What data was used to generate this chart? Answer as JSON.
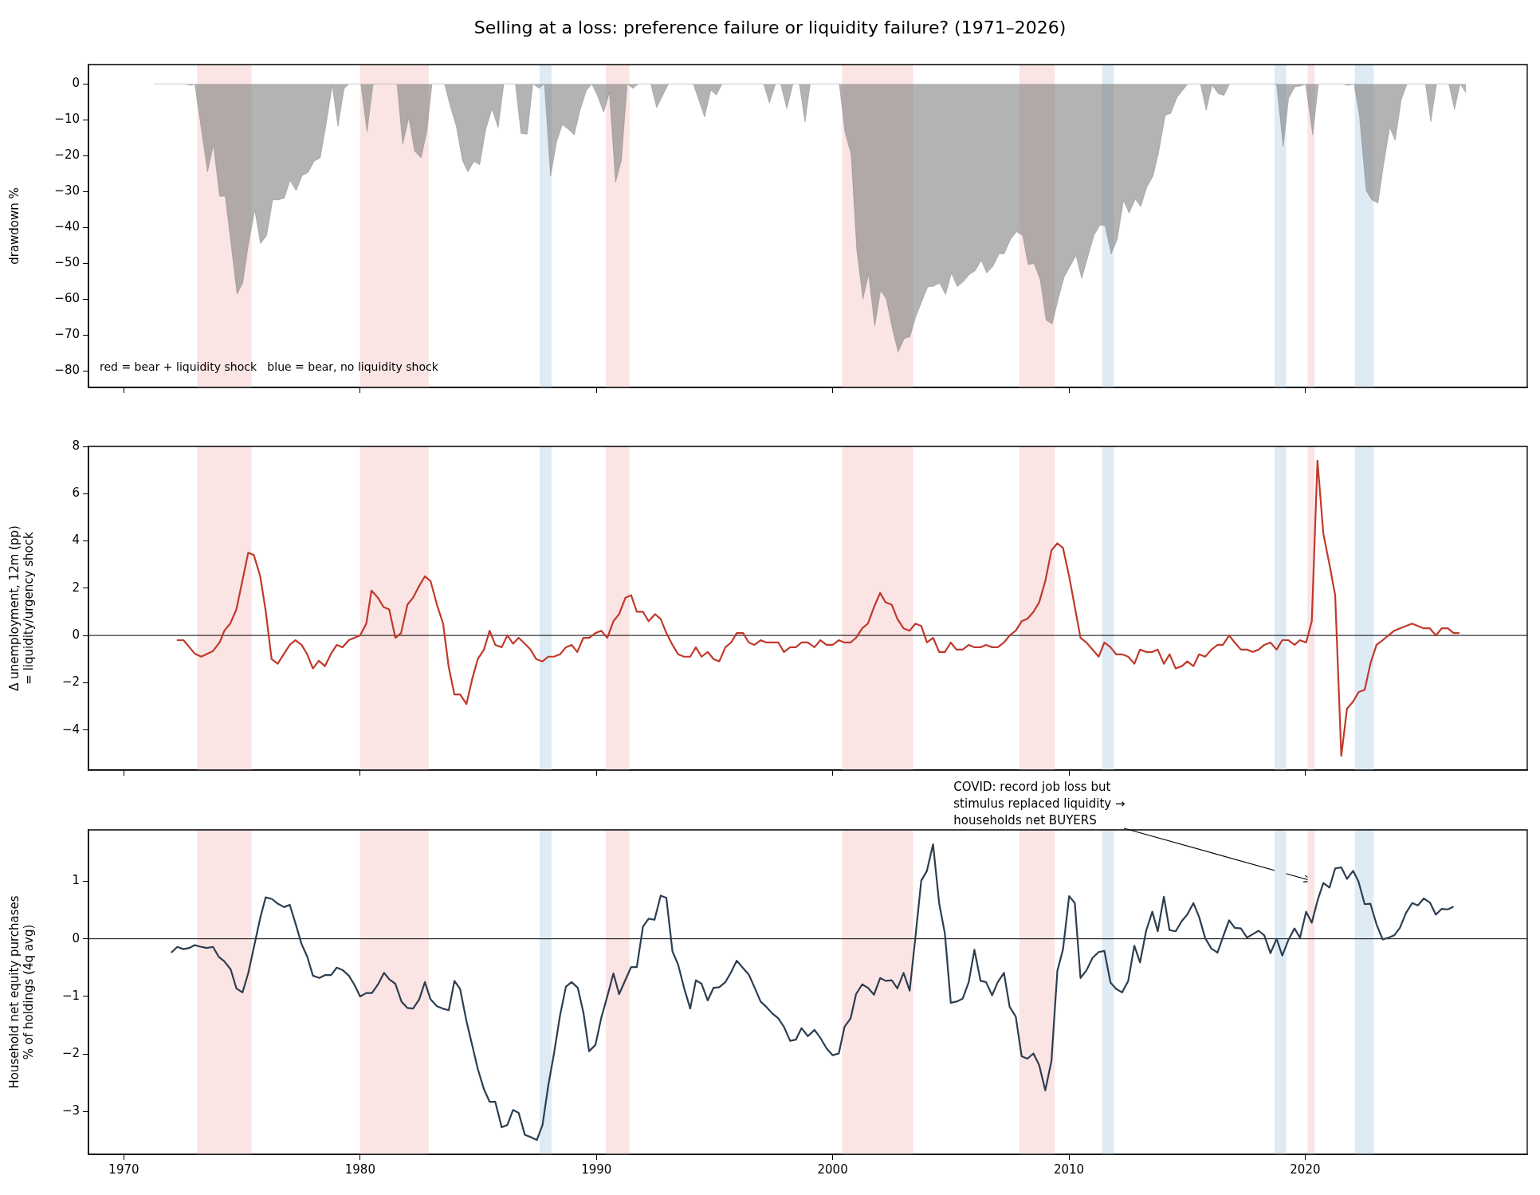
{
  "chart_data": [
    {
      "type": "area",
      "title": "Selling at a loss: preference failure or liquidity failure? (1971–2026)",
      "ylabel": "drawdown %",
      "color": "#808080",
      "tick_labels": "y",
      "xlim": [
        1968.5,
        2029.4
      ],
      "xticks": [
        1970,
        1980,
        1990,
        2000,
        2010,
        2020
      ],
      "ylim": [
        -84.6,
        5.4
      ],
      "yticks": [
        -80,
        -70,
        -60,
        -50,
        -40,
        -30,
        -20,
        -10,
        0
      ],
      "annotations": [
        "red = bear + liquidity shock   blue = bear, no liquidity shock"
      ],
      "bands": [
        {
          "axis": "x",
          "from": 1973.1,
          "to": 1975.4,
          "color": "#fbe4e4"
        },
        {
          "axis": "x",
          "from": 1980.0,
          "to": 1982.9,
          "color": "#fbe4e4"
        },
        {
          "axis": "x",
          "from": 1987.6,
          "to": 1988.1,
          "color": "#deebf5"
        },
        {
          "axis": "x",
          "from": 1990.4,
          "to": 1991.4,
          "color": "#fbe4e4"
        },
        {
          "axis": "x",
          "from": 2000.4,
          "to": 2003.4,
          "color": "#fbe4e4"
        },
        {
          "axis": "x",
          "from": 2007.9,
          "to": 2009.4,
          "color": "#fbe4e4"
        },
        {
          "axis": "x",
          "from": 2011.4,
          "to": 2011.9,
          "color": "#deebf5"
        },
        {
          "axis": "x",
          "from": 2018.7,
          "to": 2019.2,
          "color": "#deebf5"
        },
        {
          "axis": "x",
          "from": 2020.1,
          "to": 2020.4,
          "color": "#fbe4e4"
        },
        {
          "axis": "x",
          "from": 2022.1,
          "to": 2022.9,
          "color": "#deebf5"
        }
      ],
      "x": [
        1971.27,
        1972.56,
        1972.86,
        1973.0,
        1973.54,
        1973.79,
        1974.05,
        1974.29,
        1974.79,
        1975.03,
        1975.28,
        1975.54,
        1975.78,
        1976.04,
        1976.3,
        1976.54,
        1976.79,
        1977.03,
        1977.29,
        1977.55,
        1977.79,
        1978.05,
        1978.31,
        1978.56,
        1978.82,
        1979.06,
        1979.32,
        1979.52,
        1980.03,
        1980.29,
        1980.55,
        1981.56,
        1981.8,
        1982.06,
        1982.3,
        1982.58,
        1982.82,
        1983.04,
        1983.57,
        1983.83,
        1984.07,
        1984.33,
        1984.56,
        1984.82,
        1985.06,
        1985.32,
        1985.58,
        1985.84,
        1986.08,
        1986.57,
        1986.81,
        1987.07,
        1987.31,
        1987.57,
        1987.8,
        1988.06,
        1988.32,
        1988.56,
        1988.82,
        1989.06,
        1989.31,
        1989.57,
        1989.81,
        1990.05,
        1990.31,
        1990.55,
        1990.81,
        1991.06,
        1991.3,
        1991.54,
        1991.79,
        1992.3,
        1992.55,
        1993.05,
        1994.1,
        1994.58,
        1994.84,
        1995.08,
        1995.32,
        1997.08,
        1997.32,
        1997.58,
        1997.8,
        1998.06,
        1998.32,
        1998.59,
        1998.83,
        1999.05,
        2000.28,
        2000.52,
        2000.78,
        2001.02,
        2001.28,
        2001.52,
        2001.78,
        2002.03,
        2002.27,
        2002.53,
        2002.77,
        2003.03,
        2003.27,
        2003.52,
        2004.02,
        2004.28,
        2004.52,
        2004.78,
        2005.03,
        2005.27,
        2005.53,
        2005.79,
        2006.03,
        2006.29,
        2006.52,
        2006.78,
        2007.04,
        2007.26,
        2007.54,
        2007.78,
        2008.04,
        2008.27,
        2008.53,
        2008.79,
        2009.03,
        2009.29,
        2009.55,
        2009.8,
        2010.3,
        2010.54,
        2011.06,
        2011.31,
        2011.53,
        2011.79,
        2012.05,
        2012.31,
        2012.55,
        2012.81,
        2013.04,
        2013.3,
        2013.56,
        2013.8,
        2014.08,
        2014.31,
        2014.57,
        2015.03,
        2015.57,
        2015.81,
        2016.06,
        2016.32,
        2016.56,
        2016.8,
        2018.79,
        2019.07,
        2019.3,
        2019.56,
        2019.8,
        2020.02,
        2020.32,
        2020.56,
        2021.59,
        2021.83,
        2022.07,
        2022.3,
        2022.58,
        2022.82,
        2023.08,
        2023.32,
        2023.58,
        2023.81,
        2024.07,
        2024.31,
        2025.09,
        2025.32,
        2025.56,
        2026.08,
        2026.32,
        2026.56,
        2026.81
      ],
      "values": [
        0,
        0,
        -0.4,
        0,
        -24.5,
        -17,
        -31.3,
        -31.3,
        -58.6,
        -55.5,
        -44.3,
        -35.2,
        -44.5,
        -42.3,
        -32.3,
        -32.3,
        -31.8,
        -26.9,
        -29.7,
        -25.5,
        -24.7,
        -21.6,
        -20.6,
        -11.2,
        -0.4,
        -11.8,
        -1.4,
        0,
        0,
        -13.4,
        0,
        0,
        -16.8,
        -9.4,
        -18.7,
        -20.6,
        -13.4,
        0,
        0,
        -6.6,
        -11.8,
        -21.4,
        -24.5,
        -21.6,
        -22.5,
        -12.6,
        -7,
        -12.2,
        0,
        0,
        -13.8,
        -14,
        0,
        -1.2,
        0,
        -25.7,
        -16,
        -11.3,
        -12.7,
        -14.2,
        -7.3,
        -1.9,
        0,
        -3.4,
        -7.9,
        -2.3,
        -27.4,
        -21.2,
        0,
        -1.2,
        0,
        0,
        -6.6,
        0,
        0,
        -9.2,
        -1.7,
        -3.1,
        0,
        0,
        -5.3,
        0,
        0,
        -6.9,
        0,
        0,
        -10.6,
        0,
        0,
        -13.4,
        -19.6,
        -46.2,
        -60,
        -53,
        -67.5,
        -57.5,
        -60,
        -68.3,
        -74.7,
        -71,
        -70.5,
        -64.8,
        -56.6,
        -56.4,
        -55.5,
        -58.7,
        -52.7,
        -56.5,
        -55.1,
        -53.1,
        -52.1,
        -49.2,
        -52.7,
        -50.9,
        -47.4,
        -47.3,
        -43.2,
        -41.2,
        -42.2,
        -50.3,
        -50.1,
        -54.7,
        -65.8,
        -66.9,
        -59.9,
        -53.8,
        -47.8,
        -54.2,
        -42.2,
        -39.4,
        -39.5,
        -47.4,
        -43.2,
        -32.5,
        -36,
        -32.1,
        -34.2,
        -28.7,
        -25.7,
        -19,
        -8.7,
        -8.2,
        -3.8,
        0,
        0,
        -7.4,
        -0.3,
        -2.7,
        -3.2,
        0,
        0,
        -17.5,
        -4,
        -0.8,
        -0.6,
        0,
        -14.2,
        0,
        0,
        -0.4,
        0,
        -9,
        -29.7,
        -32.3,
        -33.2,
        -22.5,
        -12.1,
        -15.7,
        -4.3,
        0,
        0,
        -10.5,
        0,
        0,
        -7.1,
        0,
        -2.5
      ]
    },
    {
      "type": "line",
      "ylabel": "Δ unemployment, 12m (pp)\n= liquidity/urgency shock",
      "color": "#c0392b",
      "tick_labels": "y",
      "xlim": [
        1968.5,
        2029.4
      ],
      "xticks": [
        1970,
        1980,
        1990,
        2000,
        2010,
        2020
      ],
      "ylim": [
        -5.7,
        8
      ],
      "yticks": [
        -4,
        -2,
        0,
        2,
        4,
        6,
        8
      ],
      "ref_lines": [
        {
          "axis": "y",
          "value": 0,
          "color": "#000000"
        }
      ],
      "bands": [
        {
          "axis": "x",
          "from": 1973.1,
          "to": 1975.4,
          "color": "#fbe4e4"
        },
        {
          "axis": "x",
          "from": 1980.0,
          "to": 1982.9,
          "color": "#fbe4e4"
        },
        {
          "axis": "x",
          "from": 1987.6,
          "to": 1988.1,
          "color": "#deebf5"
        },
        {
          "axis": "x",
          "from": 1990.4,
          "to": 1991.4,
          "color": "#fbe4e4"
        },
        {
          "axis": "x",
          "from": 2000.4,
          "to": 2003.4,
          "color": "#fbe4e4"
        },
        {
          "axis": "x",
          "from": 2007.9,
          "to": 2009.4,
          "color": "#fbe4e4"
        },
        {
          "axis": "x",
          "from": 2011.4,
          "to": 2011.9,
          "color": "#deebf5"
        },
        {
          "axis": "x",
          "from": 2018.7,
          "to": 2019.2,
          "color": "#deebf5"
        },
        {
          "axis": "x",
          "from": 2020.1,
          "to": 2020.4,
          "color": "#fbe4e4"
        },
        {
          "axis": "x",
          "from": 2022.1,
          "to": 2022.9,
          "color": "#deebf5"
        }
      ],
      "x": [
        1972.24,
        1972.52,
        1973.0,
        1973.27,
        1973.77,
        1974.06,
        1974.25,
        1974.5,
        1974.76,
        1975.0,
        1975.26,
        1975.5,
        1975.77,
        1976.0,
        1976.25,
        1976.51,
        1976.78,
        1977.02,
        1977.26,
        1977.52,
        1977.76,
        1978.0,
        1978.25,
        1978.51,
        1978.77,
        1979.01,
        1979.25,
        1979.52,
        1980.0,
        1980.26,
        1980.48,
        1980.75,
        1980.99,
        1981.23,
        1981.49,
        1981.73,
        1982.0,
        1982.24,
        1982.5,
        1982.74,
        1982.98,
        1983.25,
        1983.51,
        1983.75,
        1983.99,
        1984.23,
        1984.5,
        1984.74,
        1984.98,
        1985.24,
        1985.48,
        1985.72,
        1985.99,
        1986.23,
        1986.47,
        1986.71,
        1986.97,
        1987.21,
        1987.45,
        1987.72,
        1987.96,
        1988.2,
        1988.46,
        1988.71,
        1988.95,
        1989.19,
        1989.45,
        1989.69,
        1989.96,
        1990.2,
        1990.46,
        1990.72,
        1990.96,
        1991.23,
        1991.47,
        1991.71,
        1991.97,
        1992.21,
        1992.48,
        1992.72,
        1992.96,
        1993.22,
        1993.46,
        1993.71,
        1993.97,
        1994.21,
        1994.45,
        1994.71,
        1994.96,
        1995.2,
        1995.46,
        1995.7,
        1995.94,
        1996.21,
        1996.45,
        1996.69,
        1996.95,
        1997.19,
        1997.7,
        1997.94,
        1998.2,
        1998.44,
        1998.68,
        1998.95,
        1999.23,
        1999.48,
        1999.74,
        2000.0,
        2000.26,
        2000.5,
        2000.76,
        2000.99,
        2001.25,
        2001.49,
        2001.75,
        2002.01,
        2002.24,
        2002.5,
        2002.74,
        2003.0,
        2003.26,
        2003.5,
        2003.75,
        2003.99,
        2004.25,
        2004.51,
        2004.75,
        2005.0,
        2005.24,
        2005.5,
        2005.76,
        2006.0,
        2006.26,
        2006.49,
        2006.75,
        2006.99,
        2007.25,
        2007.49,
        2007.75,
        2008.0,
        2008.24,
        2008.5,
        2008.74,
        2009.0,
        2009.26,
        2009.51,
        2009.75,
        2010.01,
        2010.25,
        2010.49,
        2010.74,
        2011.26,
        2011.5,
        2011.76,
        2012.0,
        2012.25,
        2012.51,
        2012.77,
        2013.01,
        2013.27,
        2013.53,
        2013.76,
        2014.02,
        2014.26,
        2014.52,
        2014.78,
        2015.01,
        2015.27,
        2015.51,
        2015.77,
        2016.03,
        2016.29,
        2016.52,
        2016.78,
        2017.02,
        2017.28,
        2017.54,
        2017.78,
        2018.03,
        2018.27,
        2018.53,
        2018.79,
        2019.03,
        2019.29,
        2019.55,
        2019.78,
        2020.04,
        2020.28,
        2020.52,
        2020.77,
        2021.03,
        2021.27,
        2021.53,
        2021.77,
        2022.03,
        2022.26,
        2022.52,
        2022.76,
        2023.02,
        2023.28,
        2023.52,
        2023.77,
        2024.01,
        2024.27,
        2024.53,
        2024.77,
        2025.02,
        2025.28,
        2025.53,
        2025.78,
        2026.04,
        2026.28,
        2026.53
      ],
      "values": [
        -0.2,
        -0.2,
        -0.77,
        -0.9,
        -0.66,
        -0.28,
        0.2,
        0.5,
        1.1,
        2.25,
        3.5,
        3.4,
        2.5,
        1.05,
        -1,
        -1.2,
        -0.77,
        -0.4,
        -0.2,
        -0.4,
        -0.8,
        -1.4,
        -1.07,
        -1.3,
        -0.77,
        -0.4,
        -0.5,
        -0.2,
        0,
        0.5,
        1.9,
        1.6,
        1.2,
        1.1,
        -0.1,
        0.1,
        1.3,
        1.6,
        2.1,
        2.5,
        2.3,
        1.3,
        0.5,
        -1.35,
        -2.5,
        -2.5,
        -2.9,
        -1.85,
        -1,
        -0.6,
        0.2,
        -0.4,
        -0.5,
        0,
        -0.35,
        -0.1,
        -0.35,
        -0.6,
        -1,
        -1.1,
        -0.9,
        -0.9,
        -0.8,
        -0.5,
        -0.4,
        -0.7,
        -0.1,
        -0.1,
        0.1,
        0.2,
        -0.1,
        0.6,
        0.9,
        1.6,
        1.7,
        1,
        1,
        0.6,
        0.9,
        0.7,
        0.1,
        -0.4,
        -0.8,
        -0.9,
        -0.9,
        -0.5,
        -0.9,
        -0.7,
        -1,
        -1.1,
        -0.5,
        -0.3,
        0.1,
        0.1,
        -0.3,
        -0.4,
        -0.2,
        -0.3,
        -0.3,
        -0.7,
        -0.5,
        -0.5,
        -0.3,
        -0.3,
        -0.5,
        -0.2,
        -0.4,
        -0.4,
        -0.2,
        -0.3,
        -0.3,
        -0.1,
        0.3,
        0.5,
        1.2,
        1.8,
        1.4,
        1.3,
        0.7,
        0.3,
        0.2,
        0.5,
        0.4,
        -0.3,
        -0.1,
        -0.7,
        -0.7,
        -0.3,
        -0.6,
        -0.6,
        -0.4,
        -0.5,
        -0.5,
        -0.4,
        -0.5,
        -0.5,
        -0.3,
        0,
        0.2,
        0.6,
        0.7,
        1,
        1.4,
        2.3,
        3.6,
        3.9,
        3.7,
        2.5,
        1.2,
        -0.1,
        -0.3,
        -0.9,
        -0.3,
        -0.5,
        -0.8,
        -0.8,
        -0.9,
        -1.2,
        -0.6,
        -0.7,
        -0.7,
        -0.6,
        -1.2,
        -0.8,
        -1.4,
        -1.3,
        -1.1,
        -1.3,
        -0.8,
        -0.9,
        -0.6,
        -0.4,
        -0.4,
        0,
        -0.3,
        -0.6,
        -0.6,
        -0.7,
        -0.6,
        -0.4,
        -0.3,
        -0.6,
        -0.2,
        -0.2,
        -0.4,
        -0.2,
        -0.3,
        0.6,
        7.4,
        4.3,
        3,
        1.7,
        -5.1,
        -3.1,
        -2.8,
        -2.4,
        -2.3,
        -1.2,
        -0.4,
        -0.2,
        0,
        0.2,
        0.3,
        0.4,
        0.5,
        0.4,
        0.3,
        0.3,
        0,
        0.3,
        0.3,
        0.1,
        0.1
      ]
    },
    {
      "type": "line",
      "ylabel": "Household net equity purchases\n% of holdings (4q avg)",
      "color": "#2c3e50",
      "xlim": [
        1968.5,
        2029.4
      ],
      "xticks": [
        1970,
        1980,
        1990,
        2000,
        2010,
        2020
      ],
      "ylim": [
        -3.74,
        1.89
      ],
      "yticks": [
        -3,
        -2,
        -1,
        0,
        1
      ],
      "ref_lines": [
        {
          "axis": "y",
          "value": 0,
          "color": "#000000"
        }
      ],
      "annotations": [
        {
          "text": "COVID: record job loss but\nstimulus replaced liquidity →\nhouseholds net BUYERS",
          "x": 2020.3,
          "y": 1.0
        }
      ],
      "bands": [
        {
          "axis": "x",
          "from": 1973.1,
          "to": 1975.4,
          "color": "#fbe4e4"
        },
        {
          "axis": "x",
          "from": 1980.0,
          "to": 1982.9,
          "color": "#fbe4e4"
        },
        {
          "axis": "x",
          "from": 1987.6,
          "to": 1988.1,
          "color": "#deebf5"
        },
        {
          "axis": "x",
          "from": 1990.4,
          "to": 1991.4,
          "color": "#fbe4e4"
        },
        {
          "axis": "x",
          "from": 2000.4,
          "to": 2003.4,
          "color": "#fbe4e4"
        },
        {
          "axis": "x",
          "from": 2007.9,
          "to": 2009.4,
          "color": "#fbe4e4"
        },
        {
          "axis": "x",
          "from": 2011.4,
          "to": 2011.9,
          "color": "#deebf5"
        },
        {
          "axis": "x",
          "from": 2018.7,
          "to": 2019.2,
          "color": "#deebf5"
        },
        {
          "axis": "x",
          "from": 2020.1,
          "to": 2020.4,
          "color": "#fbe4e4"
        },
        {
          "axis": "x",
          "from": 2022.1,
          "to": 2022.9,
          "color": "#deebf5"
        }
      ],
      "x": [
        1972.0,
        1972.26,
        1972.52,
        1972.76,
        1973.0,
        1973.27,
        1973.51,
        1973.77,
        1974.01,
        1974.25,
        1974.52,
        1974.76,
        1975.02,
        1975.26,
        1975.5,
        1975.77,
        1976.0,
        1976.27,
        1976.51,
        1976.78,
        1977.02,
        1977.26,
        1977.52,
        1977.76,
        1978.0,
        1978.27,
        1978.51,
        1978.77,
        1979.01,
        1979.25,
        1979.52,
        1979.76,
        1980.0,
        1980.26,
        1980.5,
        1980.77,
        1981.01,
        1981.25,
        1981.49,
        1981.75,
        1982.0,
        1982.24,
        1982.5,
        1982.74,
        1982.98,
        1983.25,
        1983.49,
        1983.75,
        1983.99,
        1984.23,
        1984.5,
        1984.74,
        1984.98,
        1985.24,
        1985.48,
        1985.72,
        1985.99,
        1986.23,
        1986.47,
        1986.71,
        1986.97,
        1987.21,
        1987.48,
        1987.72,
        1987.96,
        1988.2,
        1988.46,
        1988.71,
        1988.95,
        1989.21,
        1989.45,
        1989.69,
        1989.96,
        1990.2,
        1990.46,
        1990.72,
        1990.96,
        1991.23,
        1991.47,
        1991.71,
        1991.97,
        1992.21,
        1992.46,
        1992.72,
        1992.96,
        1993.22,
        1993.46,
        1993.71,
        1993.97,
        1994.21,
        1994.45,
        1994.71,
        1994.96,
        1995.2,
        1995.46,
        1995.7,
        1995.94,
        1996.21,
        1996.45,
        1996.69,
        1996.95,
        1997.19,
        1997.43,
        1997.7,
        1997.94,
        1998.2,
        1998.44,
        1998.68,
        1998.95,
        1999.23,
        1999.48,
        1999.74,
        2000.0,
        2000.26,
        2000.5,
        2000.76,
        2000.99,
        2001.25,
        2001.49,
        2001.75,
        2002.01,
        2002.24,
        2002.5,
        2002.74,
        2003.0,
        2003.26,
        2003.5,
        2003.75,
        2003.99,
        2004.25,
        2004.51,
        2004.75,
        2005.0,
        2005.24,
        2005.5,
        2005.76,
        2006.0,
        2006.26,
        2006.49,
        2006.75,
        2006.99,
        2007.25,
        2007.49,
        2007.75,
        2008.0,
        2008.24,
        2008.5,
        2008.74,
        2009.0,
        2009.26,
        2009.51,
        2009.75,
        2010.01,
        2010.25,
        2010.49,
        2010.74,
        2011.0,
        2011.26,
        2011.5,
        2011.76,
        2012.0,
        2012.25,
        2012.51,
        2012.77,
        2013.01,
        2013.27,
        2013.53,
        2013.76,
        2014.02,
        2014.26,
        2014.52,
        2014.78,
        2015.01,
        2015.27,
        2015.51,
        2015.77,
        2016.03,
        2016.29,
        2016.52,
        2016.78,
        2017.02,
        2017.28,
        2017.54,
        2017.78,
        2018.03,
        2018.27,
        2018.53,
        2018.79,
        2019.03,
        2019.29,
        2019.55,
        2019.78,
        2020.04,
        2020.28,
        2020.52,
        2020.77,
        2021.03,
        2021.27,
        2021.53,
        2021.77,
        2022.03,
        2022.26,
        2022.52,
        2022.76,
        2023.02,
        2023.28,
        2023.52,
        2023.77,
        2024.01,
        2024.27,
        2024.53,
        2024.77,
        2025.02,
        2025.28,
        2025.53,
        2025.78,
        2026.04,
        2026.28
      ],
      "values": [
        -0.24,
        -0.14,
        -0.18,
        -0.16,
        -0.11,
        -0.14,
        -0.16,
        -0.14,
        -0.31,
        -0.39,
        -0.53,
        -0.86,
        -0.93,
        -0.6,
        -0.15,
        0.36,
        0.72,
        0.69,
        0.61,
        0.55,
        0.59,
        0.27,
        -0.09,
        -0.31,
        -0.64,
        -0.68,
        -0.63,
        -0.63,
        -0.5,
        -0.54,
        -0.64,
        -0.8,
        -1,
        -0.94,
        -0.94,
        -0.78,
        -0.59,
        -0.71,
        -0.78,
        -1.09,
        -1.2,
        -1.21,
        -1.05,
        -0.75,
        -1.05,
        -1.17,
        -1.21,
        -1.24,
        -0.73,
        -0.87,
        -1.43,
        -1.84,
        -2.26,
        -2.61,
        -2.83,
        -2.83,
        -3.27,
        -3.23,
        -2.97,
        -3.02,
        -3.4,
        -3.44,
        -3.49,
        -3.23,
        -2.55,
        -2,
        -1.33,
        -0.83,
        -0.75,
        -0.85,
        -1.28,
        -1.95,
        -1.84,
        -1.38,
        -1,
        -0.6,
        -0.96,
        -0.71,
        -0.49,
        -0.49,
        0.21,
        0.35,
        0.33,
        0.75,
        0.71,
        -0.22,
        -0.45,
        -0.85,
        -1.21,
        -0.72,
        -0.78,
        -1.07,
        -0.85,
        -0.84,
        -0.75,
        -0.58,
        -0.38,
        -0.51,
        -0.62,
        -0.84,
        -1.09,
        -1.18,
        -1.29,
        -1.38,
        -1.53,
        -1.77,
        -1.75,
        -1.55,
        -1.69,
        -1.58,
        -1.72,
        -1.9,
        -2.02,
        -1.99,
        -1.53,
        -1.38,
        -0.96,
        -0.79,
        -0.85,
        -0.97,
        -0.68,
        -0.73,
        -0.72,
        -0.86,
        -0.59,
        -0.9,
        0.02,
        1.01,
        1.18,
        1.64,
        0.61,
        0.09,
        -1.11,
        -1.09,
        -1.04,
        -0.75,
        -0.19,
        -0.73,
        -0.75,
        -0.98,
        -0.75,
        -0.59,
        -1.18,
        -1.35,
        -2.04,
        -2.08,
        -1.99,
        -2.19,
        -2.63,
        -2.12,
        -0.56,
        -0.18,
        0.74,
        0.62,
        -0.68,
        -0.55,
        -0.33,
        -0.23,
        -0.21,
        -0.76,
        -0.87,
        -0.93,
        -0.73,
        -0.12,
        -0.41,
        0.14,
        0.47,
        0.13,
        0.73,
        0.15,
        0.13,
        0.31,
        0.42,
        0.62,
        0.38,
        0.01,
        -0.17,
        -0.24,
        0.03,
        0.32,
        0.19,
        0.18,
        0.02,
        0.08,
        0.14,
        0.06,
        -0.25,
        0,
        -0.29,
        -0.02,
        0.18,
        0.02,
        0.47,
        0.28,
        0.66,
        0.97,
        0.89,
        1.22,
        1.24,
        1.04,
        1.18,
        0.99,
        0.6,
        0.61,
        0.25,
        -0.01,
        0.02,
        0.06,
        0.19,
        0.45,
        0.62,
        0.58,
        0.7,
        0.63,
        0.42,
        0.52,
        0.51,
        0.56
      ]
    }
  ]
}
